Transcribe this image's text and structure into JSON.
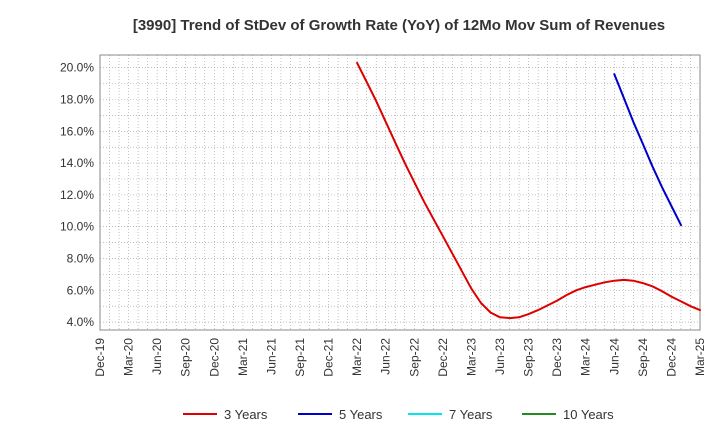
{
  "chart_data": {
    "type": "line",
    "title": "[3990]  Trend of StDev of Growth Rate (YoY) of 12Mo Mov Sum of Revenues",
    "xlabel": "",
    "ylabel": "",
    "ylim": [
      3.5,
      20.8
    ],
    "y_ticks": [
      4.0,
      6.0,
      8.0,
      10.0,
      12.0,
      14.0,
      16.0,
      18.0,
      20.0
    ],
    "y_tick_labels": [
      "4.0%",
      "6.0%",
      "8.0%",
      "10.0%",
      "12.0%",
      "14.0%",
      "16.0%",
      "18.0%",
      "20.0%"
    ],
    "x_tick_labels": [
      "Dec-19",
      "Mar-20",
      "Jun-20",
      "Sep-20",
      "Dec-20",
      "Mar-21",
      "Jun-21",
      "Sep-21",
      "Dec-21",
      "Mar-22",
      "Jun-22",
      "Sep-22",
      "Dec-22",
      "Mar-23",
      "Jun-23",
      "Sep-23",
      "Dec-23",
      "Mar-24",
      "Jun-24",
      "Sep-24",
      "Dec-24",
      "Mar-25"
    ],
    "x_months_total": 63,
    "grid": true,
    "legend_position": "bottom",
    "series": [
      {
        "name": "3 Years",
        "color": "#dd0000",
        "points": [
          [
            27,
            20.3
          ],
          [
            28,
            19.1
          ],
          [
            29,
            17.9
          ],
          [
            30,
            16.6
          ],
          [
            31,
            15.3
          ],
          [
            32,
            14.0
          ],
          [
            33,
            12.8
          ],
          [
            34,
            11.6
          ],
          [
            35,
            10.5
          ],
          [
            36,
            9.4
          ],
          [
            37,
            8.3
          ],
          [
            38,
            7.2
          ],
          [
            39,
            6.1
          ],
          [
            40,
            5.2
          ],
          [
            41,
            4.6
          ],
          [
            42,
            4.3
          ],
          [
            43,
            4.25
          ],
          [
            44,
            4.3
          ],
          [
            45,
            4.5
          ],
          [
            46,
            4.75
          ],
          [
            47,
            5.05
          ],
          [
            48,
            5.35
          ],
          [
            49,
            5.7
          ],
          [
            50,
            6.0
          ],
          [
            51,
            6.2
          ],
          [
            52,
            6.35
          ],
          [
            53,
            6.5
          ],
          [
            54,
            6.6
          ],
          [
            55,
            6.65
          ],
          [
            56,
            6.6
          ],
          [
            57,
            6.45
          ],
          [
            58,
            6.25
          ],
          [
            59,
            5.95
          ],
          [
            60,
            5.6
          ],
          [
            61,
            5.3
          ],
          [
            62,
            5.0
          ],
          [
            63,
            4.75
          ]
        ]
      },
      {
        "name": "5 Years",
        "color": "#0000cc",
        "points": [
          [
            54,
            19.6
          ],
          [
            55,
            18.1
          ],
          [
            56,
            16.6
          ],
          [
            57,
            15.2
          ],
          [
            58,
            13.8
          ],
          [
            59,
            12.5
          ],
          [
            60,
            11.3
          ],
          [
            61,
            10.1
          ]
        ]
      },
      {
        "name": "7 Years",
        "color": "#00e5ee",
        "points": []
      },
      {
        "name": "10 Years",
        "color": "#228b22",
        "points": []
      }
    ]
  }
}
